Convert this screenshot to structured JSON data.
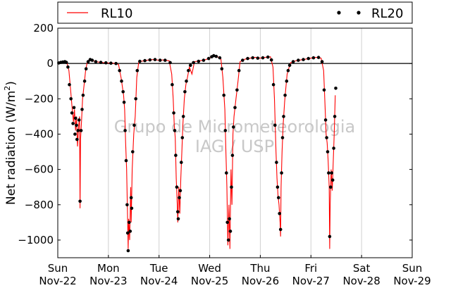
{
  "chart_data": {
    "type": "line",
    "ylabel": "Net radiation (W/m",
    "ylabel_sup": "2",
    "ylabel_close": ")",
    "ylim": [
      -1100,
      200
    ],
    "yticks": [
      200,
      0,
      -200,
      -400,
      -600,
      -800,
      -1000
    ],
    "ytick_labels": [
      "200",
      "0",
      "−200",
      "−400",
      "−600",
      "−800",
      "−1000"
    ],
    "xlim": [
      0,
      7
    ],
    "xticks": [
      {
        "x": 0,
        "day": "Sun",
        "date": "Nov-22"
      },
      {
        "x": 1,
        "day": "Mon",
        "date": "Nov-23"
      },
      {
        "x": 2,
        "day": "Tue",
        "date": "Nov-24"
      },
      {
        "x": 3,
        "day": "Wed",
        "date": "Nov-25"
      },
      {
        "x": 4,
        "day": "Thu",
        "date": "Nov-26"
      },
      {
        "x": 5,
        "day": "Fri",
        "date": "Nov-27"
      },
      {
        "x": 6,
        "day": "Sat",
        "date": "Nov-28"
      },
      {
        "x": 7,
        "day": "Sun",
        "date": "Nov-29"
      }
    ],
    "grid": "vertical",
    "zero_line": true,
    "legend": "top",
    "watermark": [
      "Grupo de Micrometeorologia",
      "IAG / USP"
    ],
    "series": [
      {
        "name": "RL10",
        "color": "#ff0000",
        "style": "line",
        "points": [
          [
            0.0,
            2
          ],
          [
            0.05,
            4
          ],
          [
            0.1,
            6
          ],
          [
            0.15,
            12
          ],
          [
            0.18,
            5
          ],
          [
            0.22,
            -40
          ],
          [
            0.25,
            -140
          ],
          [
            0.28,
            -240
          ],
          [
            0.31,
            -330
          ],
          [
            0.33,
            -260
          ],
          [
            0.35,
            -380
          ],
          [
            0.37,
            -300
          ],
          [
            0.39,
            -470
          ],
          [
            0.41,
            -360
          ],
          [
            0.43,
            -300
          ],
          [
            0.44,
            -820
          ],
          [
            0.45,
            -430
          ],
          [
            0.47,
            -320
          ],
          [
            0.49,
            -200
          ],
          [
            0.52,
            -120
          ],
          [
            0.55,
            -40
          ],
          [
            0.58,
            5
          ],
          [
            0.62,
            20
          ],
          [
            0.65,
            25
          ],
          [
            0.7,
            15
          ],
          [
            0.8,
            8
          ],
          [
            0.9,
            5
          ],
          [
            1.0,
            3
          ],
          [
            1.1,
            2
          ],
          [
            1.2,
            -5
          ],
          [
            1.25,
            -80
          ],
          [
            1.28,
            -140
          ],
          [
            1.3,
            -180
          ],
          [
            1.32,
            -260
          ],
          [
            1.34,
            -450
          ],
          [
            1.36,
            -600
          ],
          [
            1.38,
            -900
          ],
          [
            1.39,
            -1050
          ],
          [
            1.4,
            -880
          ],
          [
            1.42,
            -1000
          ],
          [
            1.44,
            -700
          ],
          [
            1.45,
            -900
          ],
          [
            1.47,
            -600
          ],
          [
            1.5,
            -400
          ],
          [
            1.53,
            -300
          ],
          [
            1.56,
            -80
          ],
          [
            1.6,
            10
          ],
          [
            1.7,
            15
          ],
          [
            1.8,
            20
          ],
          [
            1.9,
            22
          ],
          [
            2.0,
            18
          ],
          [
            2.1,
            20
          ],
          [
            2.2,
            15
          ],
          [
            2.25,
            -60
          ],
          [
            2.28,
            -200
          ],
          [
            2.3,
            -350
          ],
          [
            2.32,
            -420
          ],
          [
            2.34,
            -650
          ],
          [
            2.36,
            -800
          ],
          [
            2.37,
            -900
          ],
          [
            2.39,
            -700
          ],
          [
            2.41,
            -850
          ],
          [
            2.43,
            -650
          ],
          [
            2.45,
            -500
          ],
          [
            2.47,
            -350
          ],
          [
            2.5,
            -200
          ],
          [
            2.53,
            -120
          ],
          [
            2.56,
            -80
          ],
          [
            2.6,
            -20
          ],
          [
            2.65,
            -60
          ],
          [
            2.7,
            10
          ],
          [
            2.8,
            15
          ],
          [
            2.9,
            20
          ],
          [
            3.0,
            30
          ],
          [
            3.05,
            40
          ],
          [
            3.1,
            45
          ],
          [
            3.15,
            38
          ],
          [
            3.22,
            30
          ],
          [
            3.26,
            -80
          ],
          [
            3.3,
            -260
          ],
          [
            3.32,
            -500
          ],
          [
            3.34,
            -700
          ],
          [
            3.36,
            -1030
          ],
          [
            3.38,
            -800
          ],
          [
            3.4,
            -1050
          ],
          [
            3.42,
            -600
          ],
          [
            3.44,
            -800
          ],
          [
            3.46,
            -400
          ],
          [
            3.48,
            -300
          ],
          [
            3.52,
            -200
          ],
          [
            3.56,
            -100
          ],
          [
            3.6,
            10
          ],
          [
            3.7,
            25
          ],
          [
            3.8,
            30
          ],
          [
            3.9,
            35
          ],
          [
            4.0,
            30
          ],
          [
            4.1,
            35
          ],
          [
            4.2,
            38
          ],
          [
            4.25,
            -20
          ],
          [
            4.28,
            -200
          ],
          [
            4.31,
            -500
          ],
          [
            4.33,
            -650
          ],
          [
            4.35,
            -750
          ],
          [
            4.37,
            -800
          ],
          [
            4.39,
            -900
          ],
          [
            4.4,
            -980
          ],
          [
            4.41,
            -700
          ],
          [
            4.43,
            -500
          ],
          [
            4.45,
            -350
          ],
          [
            4.48,
            -220
          ],
          [
            4.5,
            -150
          ],
          [
            4.53,
            -60
          ],
          [
            4.56,
            -30
          ],
          [
            4.6,
            5
          ],
          [
            4.7,
            15
          ],
          [
            4.8,
            20
          ],
          [
            4.9,
            25
          ],
          [
            5.0,
            30
          ],
          [
            5.1,
            35
          ],
          [
            5.2,
            30
          ],
          [
            5.25,
            -40
          ],
          [
            5.28,
            -250
          ],
          [
            5.3,
            -400
          ],
          [
            5.32,
            -450
          ],
          [
            5.34,
            -550
          ],
          [
            5.36,
            -700
          ],
          [
            5.37,
            -1050
          ],
          [
            5.38,
            -800
          ],
          [
            5.4,
            -600
          ],
          [
            5.42,
            -720
          ],
          [
            5.44,
            -560
          ],
          [
            5.46,
            -400
          ],
          [
            5.48,
            -180
          ]
        ]
      },
      {
        "name": "RL20",
        "color": "#000000",
        "style": "dots",
        "points": [
          [
            0.02,
            3
          ],
          [
            0.06,
            6
          ],
          [
            0.1,
            8
          ],
          [
            0.14,
            10
          ],
          [
            0.17,
            6
          ],
          [
            0.2,
            -20
          ],
          [
            0.23,
            -120
          ],
          [
            0.26,
            -200
          ],
          [
            0.28,
            -280
          ],
          [
            0.3,
            -340
          ],
          [
            0.32,
            -250
          ],
          [
            0.34,
            -400
          ],
          [
            0.35,
            -310
          ],
          [
            0.37,
            -350
          ],
          [
            0.38,
            -430
          ],
          [
            0.4,
            -380
          ],
          [
            0.42,
            -320
          ],
          [
            0.44,
            -780
          ],
          [
            0.46,
            -380
          ],
          [
            0.48,
            -260
          ],
          [
            0.5,
            -180
          ],
          [
            0.53,
            -100
          ],
          [
            0.56,
            -30
          ],
          [
            0.6,
            10
          ],
          [
            0.64,
            22
          ],
          [
            0.68,
            18
          ],
          [
            0.75,
            10
          ],
          [
            0.85,
            6
          ],
          [
            0.95,
            4
          ],
          [
            1.05,
            2
          ],
          [
            1.15,
            0
          ],
          [
            1.22,
            -40
          ],
          [
            1.26,
            -100
          ],
          [
            1.29,
            -160
          ],
          [
            1.31,
            -220
          ],
          [
            1.33,
            -380
          ],
          [
            1.35,
            -550
          ],
          [
            1.37,
            -800
          ],
          [
            1.38,
            -960
          ],
          [
            1.39,
            -1060
          ],
          [
            1.41,
            -900
          ],
          [
            1.43,
            -950
          ],
          [
            1.45,
            -760
          ],
          [
            1.46,
            -820
          ],
          [
            1.48,
            -500
          ],
          [
            1.51,
            -350
          ],
          [
            1.54,
            -200
          ],
          [
            1.57,
            -40
          ],
          [
            1.62,
            12
          ],
          [
            1.72,
            16
          ],
          [
            1.82,
            20
          ],
          [
            1.92,
            22
          ],
          [
            2.02,
            18
          ],
          [
            2.12,
            18
          ],
          [
            2.22,
            5
          ],
          [
            2.26,
            -120
          ],
          [
            2.29,
            -280
          ],
          [
            2.31,
            -380
          ],
          [
            2.33,
            -520
          ],
          [
            2.35,
            -700
          ],
          [
            2.37,
            -840
          ],
          [
            2.38,
            -880
          ],
          [
            2.4,
            -760
          ],
          [
            2.42,
            -720
          ],
          [
            2.44,
            -560
          ],
          [
            2.46,
            -420
          ],
          [
            2.48,
            -300
          ],
          [
            2.51,
            -160
          ],
          [
            2.54,
            -100
          ],
          [
            2.58,
            -40
          ],
          [
            2.62,
            -10
          ],
          [
            2.68,
            5
          ],
          [
            2.78,
            12
          ],
          [
            2.88,
            18
          ],
          [
            2.98,
            28
          ],
          [
            3.04,
            38
          ],
          [
            3.08,
            44
          ],
          [
            3.13,
            40
          ],
          [
            3.2,
            32
          ],
          [
            3.24,
            -30
          ],
          [
            3.28,
            -180
          ],
          [
            3.31,
            -380
          ],
          [
            3.33,
            -620
          ],
          [
            3.35,
            -900
          ],
          [
            3.37,
            -1000
          ],
          [
            3.39,
            -880
          ],
          [
            3.41,
            -950
          ],
          [
            3.43,
            -700
          ],
          [
            3.45,
            -520
          ],
          [
            3.47,
            -360
          ],
          [
            3.5,
            -250
          ],
          [
            3.54,
            -150
          ],
          [
            3.58,
            -40
          ],
          [
            3.65,
            18
          ],
          [
            3.75,
            28
          ],
          [
            3.85,
            32
          ],
          [
            3.95,
            30
          ],
          [
            4.05,
            32
          ],
          [
            4.15,
            36
          ],
          [
            4.22,
            20
          ],
          [
            4.26,
            -120
          ],
          [
            4.29,
            -350
          ],
          [
            4.32,
            -560
          ],
          [
            4.34,
            -700
          ],
          [
            4.36,
            -760
          ],
          [
            4.38,
            -850
          ],
          [
            4.4,
            -940
          ],
          [
            4.42,
            -620
          ],
          [
            4.44,
            -420
          ],
          [
            4.46,
            -300
          ],
          [
            4.49,
            -180
          ],
          [
            4.52,
            -100
          ],
          [
            4.55,
            -40
          ],
          [
            4.58,
            -10
          ],
          [
            4.65,
            10
          ],
          [
            4.75,
            18
          ],
          [
            4.85,
            22
          ],
          [
            4.95,
            28
          ],
          [
            5.05,
            32
          ],
          [
            5.15,
            34
          ],
          [
            5.22,
            10
          ],
          [
            5.26,
            -150
          ],
          [
            5.29,
            -320
          ],
          [
            5.31,
            -420
          ],
          [
            5.33,
            -500
          ],
          [
            5.35,
            -620
          ],
          [
            5.37,
            -980
          ],
          [
            5.39,
            -700
          ],
          [
            5.41,
            -620
          ],
          [
            5.43,
            -660
          ],
          [
            5.45,
            -480
          ],
          [
            5.47,
            -300
          ],
          [
            5.49,
            -140
          ]
        ]
      }
    ]
  }
}
